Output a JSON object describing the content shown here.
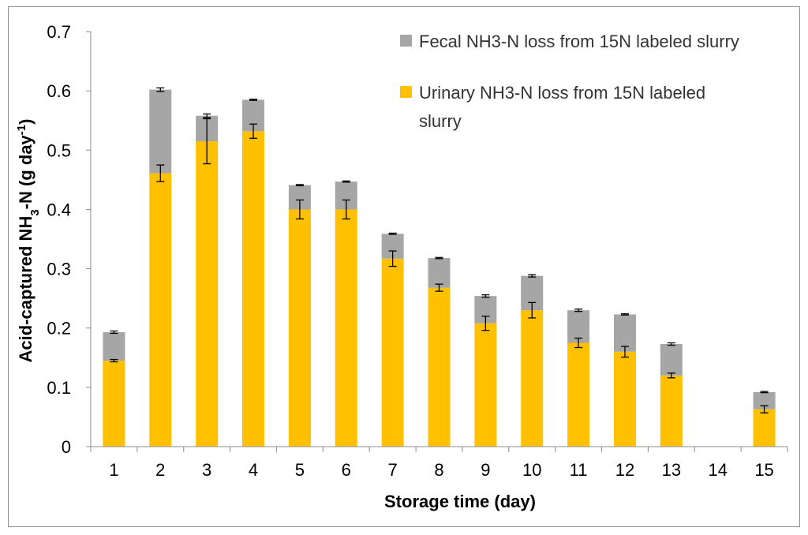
{
  "chart_data": {
    "type": "bar",
    "stacked": true,
    "title": "",
    "xlabel": "Storage time (day)",
    "ylabel": {
      "prefix": "Acid-captured NH",
      "sub": "3",
      "mid": "-N (g day",
      "sup": "-1",
      "suffix": ")"
    },
    "ylim": [
      0,
      0.7
    ],
    "yticks": [
      "0",
      "0.1",
      "0.2",
      "0.3",
      "0.4",
      "0.5",
      "0.6",
      "0.7"
    ],
    "categories": [
      "1",
      "2",
      "3",
      "4",
      "5",
      "6",
      "7",
      "8",
      "9",
      "10",
      "11",
      "12",
      "13",
      "14",
      "15"
    ],
    "series": [
      {
        "name": "Urinary NH3-N loss from 15N labeled slurry",
        "legend_lines": [
          "Urinary NH3-N loss from 15N labeled",
          "slurry"
        ],
        "color": "#FFC000",
        "values": [
          0.145,
          0.461,
          0.515,
          0.532,
          0.4,
          0.4,
          0.317,
          0.268,
          0.208,
          0.23,
          0.175,
          0.16,
          0.12,
          null,
          0.063
        ],
        "errors": [
          0.002,
          0.014,
          0.038,
          0.012,
          0.016,
          0.016,
          0.013,
          0.006,
          0.012,
          0.013,
          0.008,
          0.009,
          0.004,
          null,
          0.006
        ]
      },
      {
        "name": "Fecal NH3-N loss from 15N labeled slurry",
        "legend_lines": [
          "Fecal NH3-N loss from 15N labeled slurry"
        ],
        "color": "#A6A6A6",
        "values": [
          0.048,
          0.141,
          0.043,
          0.053,
          0.041,
          0.047,
          0.042,
          0.05,
          0.046,
          0.058,
          0.055,
          0.063,
          0.053,
          null,
          0.029
        ],
        "errors": [
          0.002,
          0.003,
          0.003,
          0.001,
          0.001,
          0.001,
          0.001,
          0.001,
          0.002,
          0.002,
          0.002,
          0.001,
          0.002,
          null,
          0.001
        ]
      }
    ],
    "legend_position": "top-right"
  }
}
